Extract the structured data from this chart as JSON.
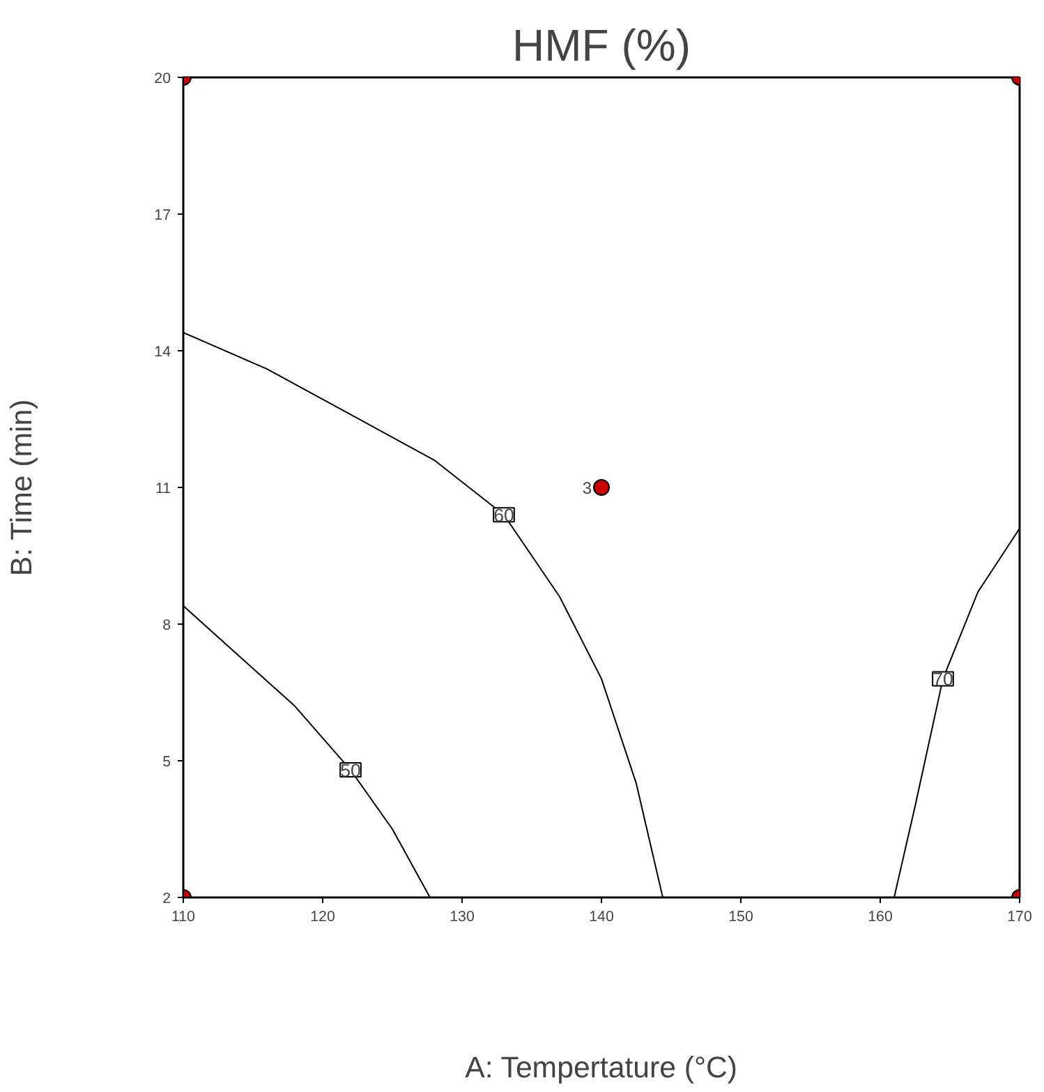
{
  "chart_data": {
    "type": "line",
    "title": "HMF (%)",
    "xlabel": "A: Tempertature (°C)",
    "ylabel": "B: Time (min)",
    "xlim": [
      110,
      170
    ],
    "xticks": [
      110,
      120,
      130,
      140,
      150,
      160,
      170
    ],
    "ylim": [
      2,
      20
    ],
    "yticks": [
      2,
      5,
      8,
      11,
      14,
      17,
      20
    ],
    "series": [
      {
        "name": "50",
        "color": "#000000",
        "x": [
          110,
          114,
          118,
          122,
          125,
          127.7
        ],
        "values": [
          8.4,
          7.3,
          6.2,
          4.8,
          3.5,
          2
        ]
      },
      {
        "name": "60",
        "color": "#000000",
        "x": [
          110,
          116,
          122,
          128,
          133,
          137,
          140,
          142.5,
          144.4
        ],
        "values": [
          14.4,
          13.6,
          12.6,
          11.6,
          10.4,
          8.6,
          6.8,
          4.5,
          2
        ]
      },
      {
        "name": "70",
        "color": "#000000",
        "x": [
          161,
          162.5,
          164.5,
          167,
          170
        ],
        "values": [
          2,
          4,
          6.8,
          8.7,
          10.1
        ]
      },
      {
        "type": "scatter",
        "color": "#cc0000",
        "marker": "circle",
        "x": [
          110,
          110,
          140,
          170,
          170
        ],
        "values": [
          2,
          20,
          11,
          2,
          20
        ]
      }
    ],
    "annotations": [
      {
        "text": "3",
        "x": 140,
        "y": 11
      }
    ]
  }
}
